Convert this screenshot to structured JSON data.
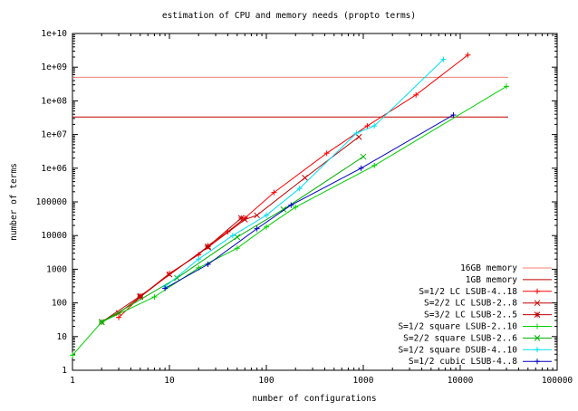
{
  "chart_data": {
    "type": "line",
    "title": "estimation of CPU and memory needs (propto terms)",
    "xlabel": "number of configurations",
    "ylabel": "number of terms",
    "xscale": "log",
    "yscale": "log",
    "xlim": [
      1,
      100000
    ],
    "ylim": [
      1,
      10000000000
    ],
    "xticks": [
      {
        "v": 1,
        "label": "1"
      },
      {
        "v": 10,
        "label": "10"
      },
      {
        "v": 100,
        "label": "100"
      },
      {
        "v": 1000,
        "label": "1000"
      },
      {
        "v": 10000,
        "label": "10000"
      },
      {
        "v": 100000,
        "label": "100000"
      }
    ],
    "yticks": [
      {
        "v": 1,
        "label": "1"
      },
      {
        "v": 10,
        "label": "10"
      },
      {
        "v": 100,
        "label": "100"
      },
      {
        "v": 1000,
        "label": "1000"
      },
      {
        "v": 10000,
        "label": "10000"
      },
      {
        "v": 100000,
        "label": "100000"
      },
      {
        "v": 1000000,
        "label": "1e+06"
      },
      {
        "v": 10000000,
        "label": "1e+07"
      },
      {
        "v": 100000000,
        "label": "1e+08"
      },
      {
        "v": 1000000000,
        "label": "1e+09"
      },
      {
        "v": 10000000000,
        "label": "1e+10"
      }
    ],
    "grid": false,
    "legend_position": "lower right",
    "hlines": [
      {
        "name": "16GB memory",
        "y": 500000000,
        "color": "#f08070"
      },
      {
        "name": "1GB memory",
        "y": 33000000,
        "color": "#c00000"
      }
    ],
    "series": [
      {
        "name": "S=1/2 LC LSUB-4..18",
        "color": "#ff0000",
        "marker": "+",
        "x": [
          3,
          5,
          10,
          20,
          25,
          40,
          60,
          120,
          420,
          1100,
          3500,
          12000
        ],
        "y": [
          37,
          150,
          750,
          2700,
          5000,
          13000,
          33000,
          190000,
          2800000,
          18000000,
          150000000,
          2300000000
        ]
      },
      {
        "name": "S=2/2 LC LSUB-2..8",
        "color": "#c00000",
        "marker": "x",
        "x": [
          2,
          3,
          5,
          10,
          25,
          60,
          80,
          250,
          900
        ],
        "y": [
          27,
          50,
          150,
          700,
          4500,
          30000,
          40000,
          520000,
          8500000
        ]
      },
      {
        "name": "S=3/2 LC LSUB-2..5",
        "color": "#c00000",
        "marker": "*",
        "x": [
          2,
          5,
          25,
          55
        ],
        "y": [
          27,
          160,
          4700,
          33000
        ]
      },
      {
        "name": "S=1/2 square LSUB-2..10",
        "color": "#00d000",
        "marker": "+",
        "x": [
          1,
          2,
          7,
          20,
          50,
          100,
          200,
          1300,
          30000
        ],
        "y": [
          2.8,
          27,
          150,
          1100,
          4200,
          18000,
          70000,
          1200000,
          270000000
        ]
      },
      {
        "name": "S=2/2 square LSUB-2..6",
        "color": "#00b000",
        "marker": "x",
        "x": [
          2,
          12,
          50,
          150,
          1000
        ],
        "y": [
          27,
          550,
          9000,
          60000,
          2200000
        ]
      },
      {
        "name": "S=1/2 square DSUB-4..10",
        "color": "#00e0f0",
        "marker": "+",
        "x": [
          9,
          20,
          45,
          100,
          220,
          850,
          1300,
          6700
        ],
        "y": [
          300,
          2000,
          10000,
          40000,
          250000,
          11000000,
          18000000,
          1700000000
        ]
      },
      {
        "name": "S=1/2 cubic  LSUB-4..8",
        "color": "#0000c0",
        "marker": "+",
        "x": [
          9,
          25,
          80,
          180,
          950,
          8500
        ],
        "y": [
          270,
          1400,
          16000,
          80000,
          1000000,
          38000000
        ]
      }
    ]
  }
}
